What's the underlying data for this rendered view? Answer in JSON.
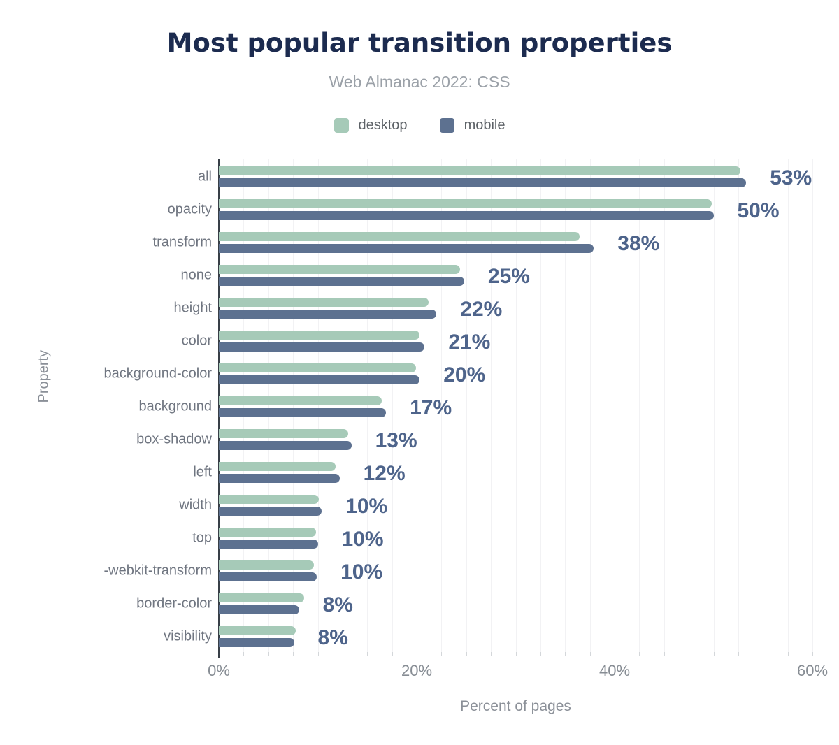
{
  "title": "Most popular transition properties",
  "subtitle": "Web Almanac 2022: CSS",
  "legend": [
    {
      "label": "desktop",
      "color": "#a6cab8"
    },
    {
      "label": "mobile",
      "color": "#5d7190"
    }
  ],
  "colors": {
    "title": "#1c2b4f",
    "subtitle": "#9ba1a8",
    "desktop_bar": "#a6cab8",
    "mobile_bar": "#5d7190",
    "value_label": "#4e648b",
    "category_label": "#6f7580",
    "axis_text": "#878d94",
    "axis_line": "#383f47",
    "gridline": "#f2f2f4"
  },
  "chart_data": {
    "type": "bar",
    "orientation": "horizontal",
    "title": "Most popular transition properties",
    "subtitle": "Web Almanac 2022: CSS",
    "xlabel": "Percent of pages",
    "ylabel": "Property",
    "xlim": [
      0,
      60
    ],
    "x_tick_values": [
      0,
      20,
      40,
      60
    ],
    "x_ticks": [
      "0%",
      "20%",
      "40%",
      "60%"
    ],
    "grid": "faint vertical minor gridlines every 2.5%",
    "legend_position": "top-center",
    "categories": [
      "all",
      "opacity",
      "transform",
      "none",
      "height",
      "color",
      "background-color",
      "background",
      "box-shadow",
      "left",
      "width",
      "top",
      "-webkit-transform",
      "border-color",
      "visibility"
    ],
    "series": [
      {
        "name": "desktop",
        "color": "#a6cab8",
        "values": [
          52.7,
          49.8,
          36.5,
          24.4,
          21.2,
          20.3,
          19.9,
          16.5,
          13.1,
          11.8,
          10.1,
          9.8,
          9.6,
          8.6,
          7.8
        ]
      },
      {
        "name": "mobile",
        "color": "#5d7190",
        "values": [
          53.3,
          50.0,
          37.9,
          24.8,
          22.0,
          20.8,
          20.3,
          16.9,
          13.4,
          12.2,
          10.4,
          10.0,
          9.9,
          8.1,
          7.6
        ]
      }
    ],
    "value_labels": [
      "53%",
      "50%",
      "38%",
      "25%",
      "22%",
      "21%",
      "20%",
      "17%",
      "13%",
      "12%",
      "10%",
      "10%",
      "10%",
      "8%",
      "8%"
    ],
    "value_labels_series": "mobile"
  }
}
